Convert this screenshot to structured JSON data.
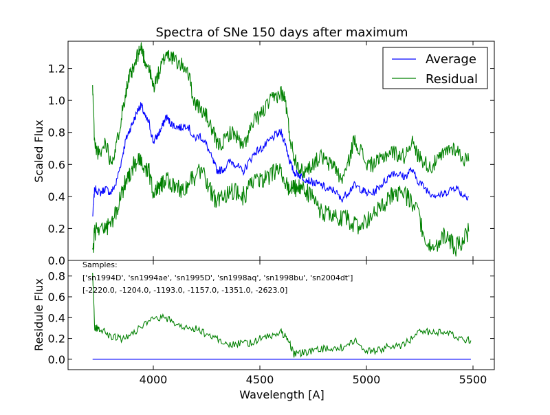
{
  "chart_data": [
    {
      "type": "line",
      "title": "Spectra of SNe 150 days after maximum",
      "xlabel": "",
      "ylabel": "Scaled Flux",
      "xlim": [
        3600,
        5600
      ],
      "ylim": [
        0.0,
        1.37
      ],
      "yticks": [
        "0.0",
        "0.2",
        "0.4",
        "0.6",
        "0.8",
        "1.0",
        "1.2"
      ],
      "legend": {
        "position": "top-right",
        "entries": [
          "Average",
          "Residual"
        ]
      },
      "series": [
        {
          "name": "Average",
          "color": "#0000ff",
          "x": [
            3715,
            3725,
            3750,
            3775,
            3800,
            3825,
            3850,
            3870,
            3890,
            3910,
            3930,
            3945,
            3960,
            3980,
            4000,
            4020,
            4040,
            4060,
            4080,
            4100,
            4130,
            4160,
            4190,
            4220,
            4250,
            4280,
            4300,
            4330,
            4360,
            4390,
            4420,
            4450,
            4480,
            4510,
            4540,
            4570,
            4600,
            4620,
            4640,
            4660,
            4680,
            4700,
            4730,
            4760,
            4790,
            4820,
            4850,
            4880,
            4910,
            4940,
            4970,
            5000,
            5030,
            5060,
            5090,
            5120,
            5150,
            5180,
            5210,
            5240,
            5270,
            5300,
            5330,
            5360,
            5390,
            5420,
            5450,
            5480
          ],
          "y": [
            0.27,
            0.45,
            0.42,
            0.45,
            0.42,
            0.48,
            0.62,
            0.75,
            0.82,
            0.88,
            0.95,
            0.97,
            0.9,
            0.86,
            0.74,
            0.78,
            0.83,
            0.9,
            0.86,
            0.84,
            0.83,
            0.85,
            0.76,
            0.78,
            0.72,
            0.62,
            0.56,
            0.57,
            0.62,
            0.6,
            0.55,
            0.62,
            0.68,
            0.7,
            0.74,
            0.78,
            0.8,
            0.73,
            0.62,
            0.55,
            0.54,
            0.52,
            0.5,
            0.48,
            0.47,
            0.44,
            0.44,
            0.38,
            0.42,
            0.47,
            0.45,
            0.42,
            0.42,
            0.46,
            0.5,
            0.55,
            0.54,
            0.52,
            0.57,
            0.5,
            0.46,
            0.42,
            0.41,
            0.41,
            0.44,
            0.46,
            0.41,
            0.4
          ]
        },
        {
          "name": "Residual",
          "color": "#008000",
          "x": [
            3715,
            3725,
            3750,
            3775,
            3800,
            3825,
            3850,
            3870,
            3890,
            3910,
            3930,
            3945,
            3960,
            3980,
            4000,
            4020,
            4040,
            4060,
            4080,
            4100,
            4130,
            4160,
            4190,
            4220,
            4250,
            4280,
            4300,
            4330,
            4360,
            4390,
            4420,
            4450,
            4480,
            4510,
            4540,
            4570,
            4600,
            4620,
            4640,
            4660,
            4680,
            4700,
            4730,
            4760,
            4790,
            4820,
            4850,
            4880,
            4910,
            4940,
            4970,
            5000,
            5030,
            5060,
            5090,
            5120,
            5150,
            5180,
            5210,
            5240,
            5270,
            5300,
            5330,
            5360,
            5390,
            5420,
            5450,
            5480
          ],
          "y": [
            1.08,
            0.72,
            0.65,
            0.75,
            0.62,
            0.7,
            0.9,
            1.05,
            1.15,
            1.2,
            1.3,
            1.33,
            1.25,
            1.2,
            1.08,
            1.15,
            1.22,
            1.3,
            1.28,
            1.25,
            1.22,
            1.2,
            1.0,
            0.95,
            0.9,
            0.8,
            0.72,
            0.74,
            0.8,
            0.78,
            0.7,
            0.8,
            0.88,
            0.92,
            0.98,
            1.02,
            1.05,
            1.0,
            0.78,
            0.65,
            0.6,
            0.55,
            0.58,
            0.62,
            0.65,
            0.6,
            0.6,
            0.5,
            0.58,
            0.75,
            0.7,
            0.6,
            0.6,
            0.62,
            0.66,
            0.68,
            0.66,
            0.65,
            0.75,
            0.66,
            0.62,
            0.58,
            0.62,
            0.66,
            0.7,
            0.7,
            0.64,
            0.62
          ],
          "y_lower": [
            0.03,
            0.18,
            0.22,
            0.2,
            0.22,
            0.3,
            0.4,
            0.5,
            0.55,
            0.6,
            0.62,
            0.6,
            0.58,
            0.55,
            0.42,
            0.45,
            0.48,
            0.52,
            0.48,
            0.45,
            0.44,
            0.48,
            0.52,
            0.55,
            0.5,
            0.4,
            0.36,
            0.4,
            0.45,
            0.42,
            0.4,
            0.45,
            0.5,
            0.5,
            0.52,
            0.55,
            0.55,
            0.48,
            0.44,
            0.45,
            0.45,
            0.45,
            0.42,
            0.36,
            0.3,
            0.28,
            0.28,
            0.26,
            0.26,
            0.22,
            0.2,
            0.25,
            0.28,
            0.32,
            0.35,
            0.42,
            0.42,
            0.4,
            0.38,
            0.3,
            0.15,
            0.08,
            0.1,
            0.15,
            0.12,
            0.08,
            0.12,
            0.18
          ]
        }
      ]
    },
    {
      "type": "line",
      "title": "",
      "xlabel": "Wavelength [A]",
      "ylabel": "Residule Flux",
      "xlim": [
        3600,
        5600
      ],
      "ylim": [
        -0.1,
        0.95
      ],
      "xticks": [
        "4000",
        "4500",
        "5000",
        "5500"
      ],
      "yticks": [
        "0.0",
        "0.2",
        "0.4",
        "0.6",
        "0.8"
      ],
      "annotations": [
        "Samples:",
        "['sn1994D', 'sn1994ae', 'sn1995D', 'sn1998aq', 'sn1998bu', 'sn2004dt']",
        "[-2220.0, -1204.0, -1193.0, -1157.0, -1351.0, -2623.0]"
      ],
      "series": [
        {
          "name": "",
          "color": "#0000ff",
          "x": [
            3715,
            5490
          ],
          "y": [
            0.0,
            0.0
          ]
        },
        {
          "name": "",
          "color": "#008000",
          "x": [
            3715,
            3725,
            3750,
            3800,
            3850,
            3900,
            3950,
            4000,
            4050,
            4100,
            4150,
            4200,
            4250,
            4300,
            4350,
            4400,
            4450,
            4500,
            4550,
            4600,
            4630,
            4660,
            4700,
            4750,
            4800,
            4850,
            4900,
            4950,
            5000,
            5050,
            5100,
            5150,
            5200,
            5250,
            5300,
            5350,
            5400,
            5450,
            5490
          ],
          "y": [
            0.85,
            0.3,
            0.3,
            0.22,
            0.2,
            0.25,
            0.32,
            0.38,
            0.4,
            0.35,
            0.3,
            0.3,
            0.24,
            0.2,
            0.14,
            0.15,
            0.15,
            0.2,
            0.22,
            0.26,
            0.2,
            0.05,
            0.06,
            0.08,
            0.1,
            0.1,
            0.12,
            0.18,
            0.08,
            0.08,
            0.12,
            0.12,
            0.18,
            0.28,
            0.26,
            0.26,
            0.24,
            0.2,
            0.18
          ]
        }
      ]
    }
  ]
}
